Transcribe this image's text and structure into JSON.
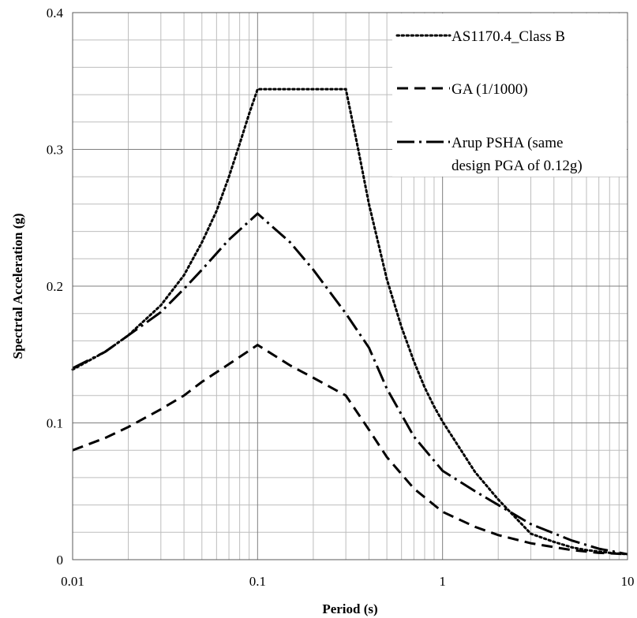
{
  "chart_data": {
    "type": "line",
    "title": "",
    "xlabel": "Period (s)",
    "ylabel": "Spectrtal Acceleration (g)",
    "xscale": "log",
    "xlim": [
      0.01,
      10
    ],
    "ylim": [
      0,
      0.4
    ],
    "xticks": [
      {
        "value": 0.01,
        "label": "0.01"
      },
      {
        "value": 0.1,
        "label": "0.1"
      },
      {
        "value": 1,
        "label": "1"
      },
      {
        "value": 10,
        "label": "10"
      }
    ],
    "yticks": [
      {
        "value": 0,
        "label": "0"
      },
      {
        "value": 0.1,
        "label": "0.1"
      },
      {
        "value": 0.2,
        "label": "0.2"
      },
      {
        "value": 0.3,
        "label": "0.3"
      },
      {
        "value": 0.4,
        "label": "0.4"
      }
    ],
    "grid": true,
    "legend_position": "top-right",
    "series": [
      {
        "name": "AS1170.4_Class B",
        "style": "dotted",
        "color": "#000000",
        "points": [
          [
            0.01,
            0.139
          ],
          [
            0.015,
            0.152
          ],
          [
            0.02,
            0.164
          ],
          [
            0.03,
            0.186
          ],
          [
            0.04,
            0.208
          ],
          [
            0.05,
            0.232
          ],
          [
            0.06,
            0.255
          ],
          [
            0.07,
            0.28
          ],
          [
            0.08,
            0.304
          ],
          [
            0.09,
            0.326
          ],
          [
            0.1,
            0.344
          ],
          [
            0.15,
            0.344
          ],
          [
            0.2,
            0.344
          ],
          [
            0.3,
            0.344
          ],
          [
            0.35,
            0.3
          ],
          [
            0.4,
            0.26
          ],
          [
            0.5,
            0.205
          ],
          [
            0.6,
            0.17
          ],
          [
            0.7,
            0.145
          ],
          [
            0.8,
            0.126
          ],
          [
            0.9,
            0.112
          ],
          [
            1,
            0.101
          ],
          [
            1.5,
            0.064
          ],
          [
            2,
            0.044
          ],
          [
            3,
            0.019
          ],
          [
            4,
            0.013
          ],
          [
            5,
            0.009
          ],
          [
            6,
            0.007
          ],
          [
            8,
            0.005
          ],
          [
            10,
            0.004
          ]
        ]
      },
      {
        "name": "GA (1/1000)",
        "style": "dashed",
        "color": "#000000",
        "points": [
          [
            0.01,
            0.08
          ],
          [
            0.015,
            0.089
          ],
          [
            0.02,
            0.097
          ],
          [
            0.03,
            0.11
          ],
          [
            0.04,
            0.12
          ],
          [
            0.05,
            0.13
          ],
          [
            0.07,
            0.143
          ],
          [
            0.1,
            0.157
          ],
          [
            0.15,
            0.142
          ],
          [
            0.2,
            0.133
          ],
          [
            0.3,
            0.12
          ],
          [
            0.4,
            0.095
          ],
          [
            0.5,
            0.075
          ],
          [
            0.7,
            0.052
          ],
          [
            1,
            0.035
          ],
          [
            1.5,
            0.024
          ],
          [
            2,
            0.018
          ],
          [
            3,
            0.012
          ],
          [
            5,
            0.007
          ],
          [
            7,
            0.005
          ],
          [
            10,
            0.004
          ]
        ]
      },
      {
        "name": "Arup PSHA (same design PGA of 0.12g)",
        "style": "dash-dot",
        "color": "#000000",
        "points": [
          [
            0.01,
            0.14
          ],
          [
            0.015,
            0.152
          ],
          [
            0.02,
            0.164
          ],
          [
            0.03,
            0.181
          ],
          [
            0.04,
            0.198
          ],
          [
            0.05,
            0.212
          ],
          [
            0.07,
            0.234
          ],
          [
            0.1,
            0.253
          ],
          [
            0.15,
            0.232
          ],
          [
            0.2,
            0.212
          ],
          [
            0.3,
            0.18
          ],
          [
            0.4,
            0.155
          ],
          [
            0.5,
            0.125
          ],
          [
            0.7,
            0.09
          ],
          [
            1,
            0.065
          ],
          [
            1.5,
            0.05
          ],
          [
            2,
            0.04
          ],
          [
            3,
            0.026
          ],
          [
            5,
            0.014
          ],
          [
            7,
            0.008
          ],
          [
            10,
            0.004
          ]
        ]
      }
    ],
    "legend_lines": [
      [
        "AS1170.4_Class B"
      ],
      [
        "GA (1/1000)"
      ],
      [
        "Arup PSHA (same",
        "design PGA of 0.12g)"
      ]
    ]
  }
}
